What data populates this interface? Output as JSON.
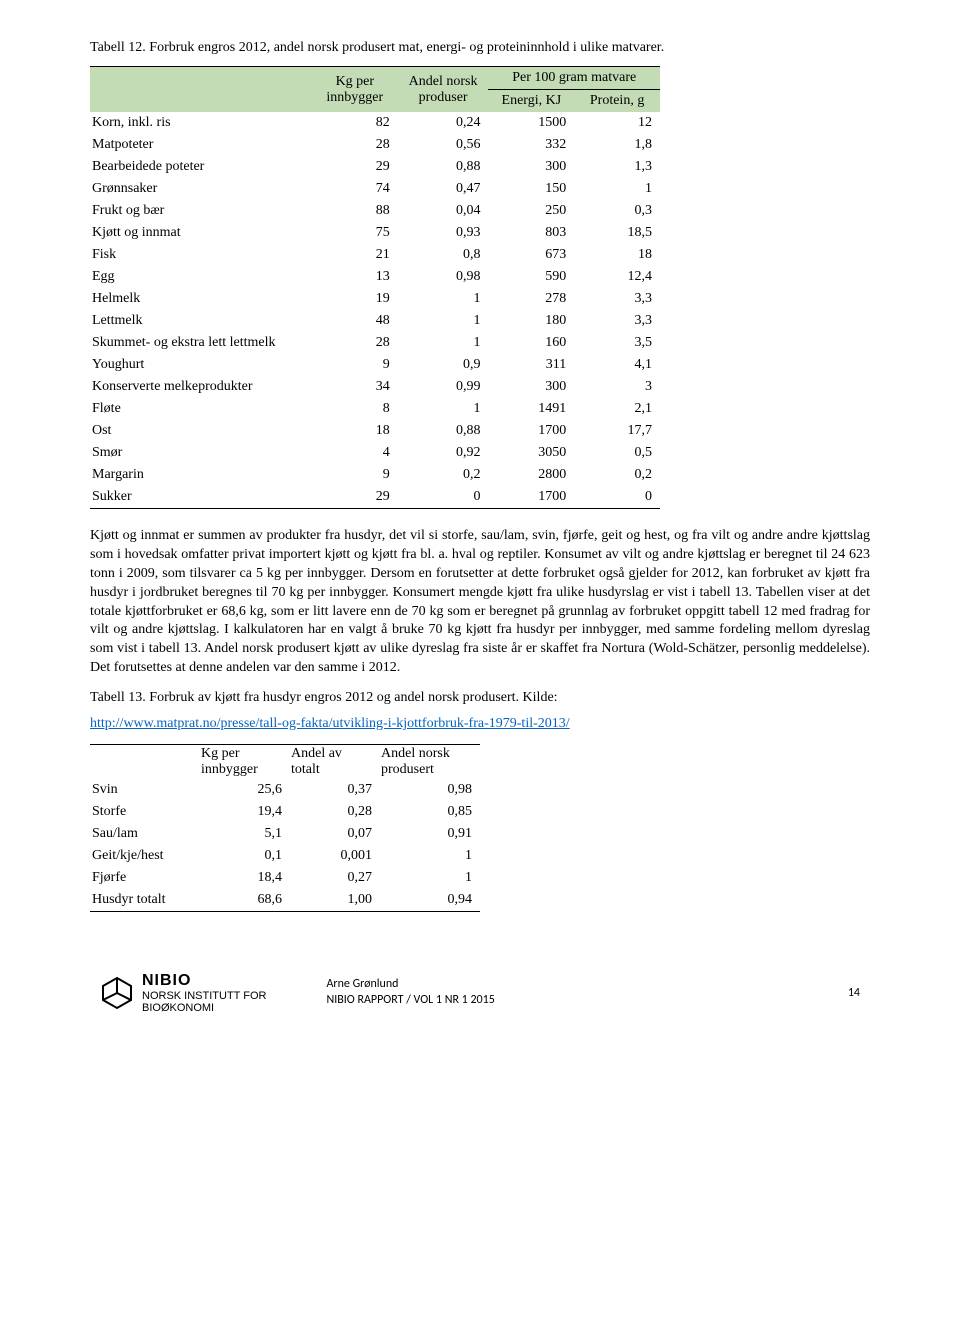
{
  "caption12": "Tabell 12. Forbruk engros 2012, andel norsk produsert mat, energi- og proteininnhold i ulike matvarer.",
  "t12": {
    "header": {
      "blank": "",
      "kg_l1": "Kg per",
      "kg_l2": "innbygger",
      "andel_l1": "Andel norsk",
      "andel_l2": "produser",
      "per100": "Per 100 gram matvare",
      "energi": "Energi, KJ",
      "protein": "Protein, g"
    },
    "rows": [
      {
        "label": "Korn, inkl. ris",
        "kg": "82",
        "andel": "0,24",
        "e": "1500",
        "p": "12"
      },
      {
        "label": "Matpoteter",
        "kg": "28",
        "andel": "0,56",
        "e": "332",
        "p": "1,8"
      },
      {
        "label": "Bearbeidede poteter",
        "kg": "29",
        "andel": "0,88",
        "e": "300",
        "p": "1,3"
      },
      {
        "label": "Grønnsaker",
        "kg": "74",
        "andel": "0,47",
        "e": "150",
        "p": "1"
      },
      {
        "label": "Frukt og bær",
        "kg": "88",
        "andel": "0,04",
        "e": "250",
        "p": "0,3"
      },
      {
        "label": "Kjøtt og innmat",
        "kg": "75",
        "andel": "0,93",
        "e": "803",
        "p": "18,5"
      },
      {
        "label": "Fisk",
        "kg": "21",
        "andel": "0,8",
        "e": "673",
        "p": "18"
      },
      {
        "label": "Egg",
        "kg": "13",
        "andel": "0,98",
        "e": "590",
        "p": "12,4"
      },
      {
        "label": "Helmelk",
        "kg": "19",
        "andel": "1",
        "e": "278",
        "p": "3,3"
      },
      {
        "label": "Lettmelk",
        "kg": "48",
        "andel": "1",
        "e": "180",
        "p": "3,3"
      },
      {
        "label": "Skummet- og ekstra lett lettmelk",
        "kg": "28",
        "andel": "1",
        "e": "160",
        "p": "3,5"
      },
      {
        "label": "Youghurt",
        "kg": "9",
        "andel": "0,9",
        "e": "311",
        "p": "4,1"
      },
      {
        "label": "Konserverte melkeprodukter",
        "kg": "34",
        "andel": "0,99",
        "e": "300",
        "p": "3"
      },
      {
        "label": "Fløte",
        "kg": "8",
        "andel": "1",
        "e": "1491",
        "p": "2,1"
      },
      {
        "label": "Ost",
        "kg": "18",
        "andel": "0,88",
        "e": "1700",
        "p": "17,7"
      },
      {
        "label": "Smør",
        "kg": "4",
        "andel": "0,92",
        "e": "3050",
        "p": "0,5"
      },
      {
        "label": "Margarin",
        "kg": "9",
        "andel": "0,2",
        "e": "2800",
        "p": "0,2"
      },
      {
        "label": "Sukker",
        "kg": "29",
        "andel": "0",
        "e": "1700",
        "p": "0"
      }
    ]
  },
  "para": "Kjøtt og innmat er summen av produkter fra husdyr, det vil si storfe, sau/lam, svin, fjørfe, geit og hest, og fra vilt og andre andre kjøttslag som i hovedsak omfatter privat importert kjøtt og kjøtt fra bl. a. hval og reptiler. Konsumet av vilt og andre kjøttslag er beregnet til 24 623 tonn i 2009, som tilsvarer ca 5 kg per innbygger. Dersom en forutsetter at dette forbruket også gjelder for 2012, kan forbruket av kjøtt fra husdyr i jordbruket beregnes til 70 kg per innbygger. Konsumert mengde kjøtt fra ulike husdyrslag er vist i tabell 13. Tabellen viser at det totale kjøttforbruket er 68,6 kg, som er litt lavere enn de 70 kg som er beregnet på grunnlag av forbruket oppgitt tabell 12 med fradrag for vilt og andre kjøttslag. I kalkulatoren har en valgt å bruke 70 kg kjøtt fra husdyr per innbygger, med samme fordeling mellom dyreslag som vist i tabell 13. Andel norsk produsert kjøtt av ulike dyreslag fra siste år er skaffet fra Nortura (Wold-Schätzer, personlig meddelelse). Det forutsettes at denne andelen var den samme i 2012.",
  "caption13": "Tabell 13. Forbruk av kjøtt fra husdyr engros 2012 og andel norsk produsert. Kilde:",
  "link13": "http://www.matprat.no/presse/tall-og-fakta/utvikling-i-kjottforbruk-fra-1979-til-2013/",
  "t13": {
    "header": {
      "kg_l1": "Kg per",
      "kg_l2": "innbygger",
      "at_l1": "Andel av",
      "at_l2": "totalt",
      "an_l1": "Andel norsk",
      "an_l2": "produsert"
    },
    "rows": [
      {
        "label": "Svin",
        "kg": "25,6",
        "at": "0,37",
        "an": "0,98"
      },
      {
        "label": "Storfe",
        "kg": "19,4",
        "at": "0,28",
        "an": "0,85"
      },
      {
        "label": "Sau/lam",
        "kg": "5,1",
        "at": "0,07",
        "an": "0,91"
      },
      {
        "label": "Geit/kje/hest",
        "kg": "0,1",
        "at": "0,001",
        "an": "1"
      },
      {
        "label": "Fjørfe",
        "kg": "18,4",
        "at": "0,27",
        "an": "1"
      },
      {
        "label": "Husdyr totalt",
        "kg": "68,6",
        "at": "1,00",
        "an": "0,94"
      }
    ]
  },
  "footer": {
    "logo_big": "NIBIO",
    "logo_small1": "NORSK INSTITUTT FOR",
    "logo_small2": "BIOØKONOMI",
    "author": "Arne Grønlund",
    "report": "NIBIO RAPPORT / VOL 1 NR 1 2015",
    "page": "14"
  },
  "colors": {
    "header_bg": "#c3dcb6",
    "link": "#0563c1"
  }
}
